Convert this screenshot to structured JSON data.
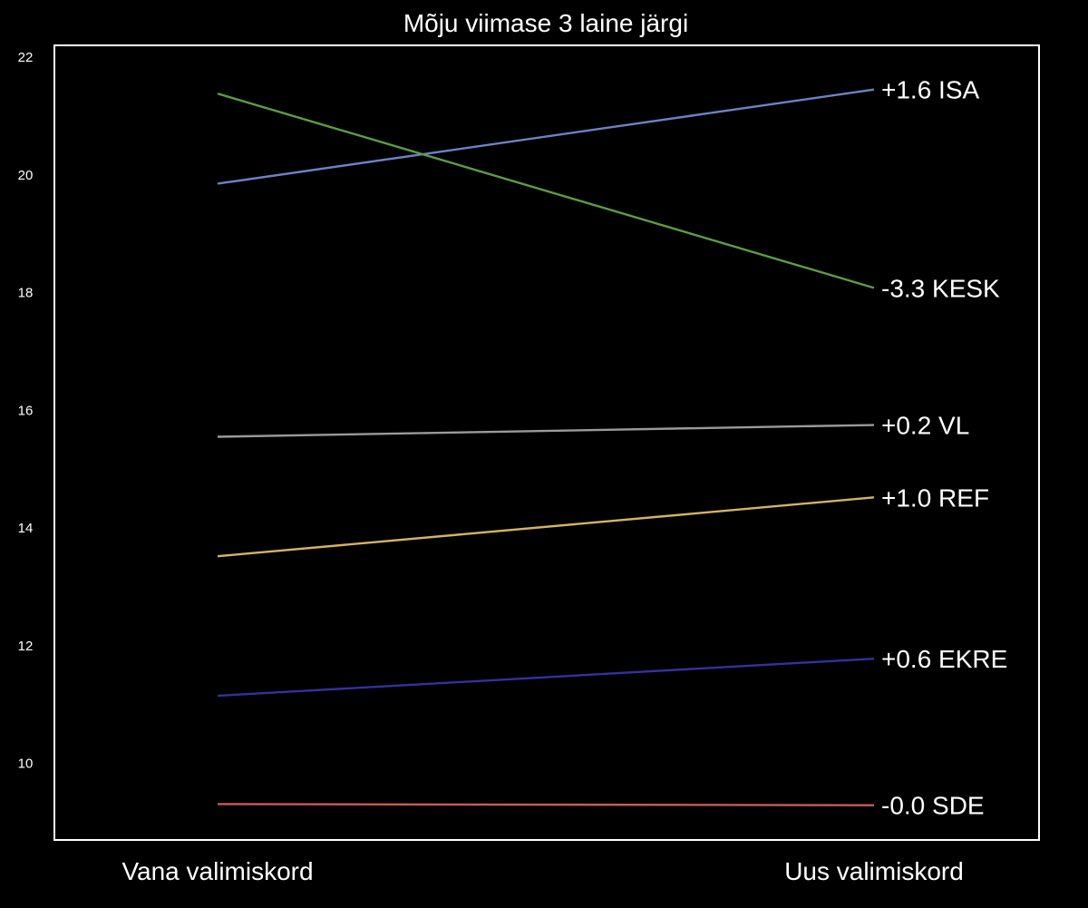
{
  "chart_data": {
    "type": "line",
    "title": "Mõju viimase 3 laine järgi",
    "xlabel": "",
    "ylabel": "",
    "categories": [
      "Vana valimiskord",
      "Uus valimiskord"
    ],
    "ylim": [
      8.7,
      22.2
    ],
    "yticks": [
      10,
      12,
      14,
      16,
      18,
      20,
      22
    ],
    "grid": false,
    "series": [
      {
        "name": "ISA",
        "values": [
          19.85,
          21.45
        ],
        "label": "+1.6 ISA",
        "color": "#6b83c6"
      },
      {
        "name": "KESK",
        "values": [
          21.38,
          18.08
        ],
        "label": "-3.3 KESK",
        "color": "#5a9e45"
      },
      {
        "name": "VL",
        "values": [
          15.55,
          15.75
        ],
        "label": "+0.2 VL",
        "color": "#9a9a9a"
      },
      {
        "name": "REF",
        "values": [
          13.52,
          14.52
        ],
        "label": "+1.0 REF",
        "color": "#d3b465"
      },
      {
        "name": "EKRE",
        "values": [
          11.15,
          11.78
        ],
        "label": "+0.6 EKRE",
        "color": "#3331a0"
      },
      {
        "name": "SDE",
        "values": [
          9.31,
          9.29
        ],
        "label": "-0.0 SDE",
        "color": "#c65e58"
      }
    ]
  },
  "colors": {
    "background": "#000000",
    "axes_frame": "#ffffff",
    "text": "#ffffff"
  }
}
